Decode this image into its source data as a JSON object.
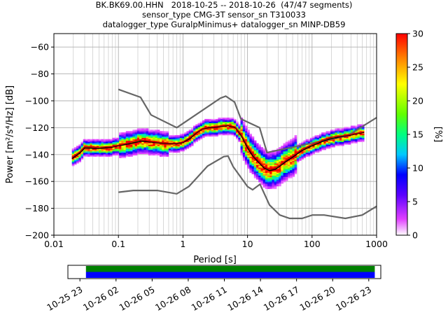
{
  "title": {
    "line1": "BK.BK69.00.HHN   2018-10-25 -- 2018-10-26  (47/47 segments)",
    "line2": "sensor_type CMG-3T sensor_sn T310033",
    "line3": "datalogger_type GuralpMinimus+ datalogger_sn MINP-DB59"
  },
  "chart_data": [
    {
      "type": "heatmap",
      "xlabel": "Period [s]",
      "ylabel": "Power [m²/s⁴/Hz] [dB]",
      "xscale": "log",
      "xlim": [
        0.01,
        1000
      ],
      "ylim": [
        -200,
        -50
      ],
      "xticks": [
        "0.01",
        "0.1",
        "1",
        "10",
        "100",
        "1000"
      ],
      "yticks": [
        "−60",
        "−80",
        "−100",
        "−120",
        "−140",
        "−160",
        "−180",
        "−200"
      ],
      "grid": true,
      "colorbar": {
        "label": "[%]",
        "range": [
          0,
          30
        ],
        "ticks": [
          "0",
          "5",
          "10",
          "15",
          "20",
          "25",
          "30"
        ]
      },
      "series": [
        {
          "name": "",
          "role": "noise model high",
          "color": "#666666",
          "x": [
            0.1,
            0.22,
            0.32,
            0.8,
            3.8,
            4.6,
            6.3,
            7.9,
            15.4,
            20.0,
            354.8,
            1000
          ],
          "y": [
            -91.5,
            -97.4,
            -110.5,
            -120.0,
            -98.0,
            -96.5,
            -101.0,
            -113.5,
            -120.0,
            -138.5,
            -126.0,
            -112.5
          ]
        },
        {
          "name": "",
          "role": "noise model low",
          "color": "#666666",
          "x": [
            0.1,
            0.17,
            0.4,
            0.8,
            1.24,
            2.4,
            4.3,
            5.0,
            6.0,
            10.0,
            12.0,
            15.6,
            21.9,
            31.6,
            45.0,
            70.0,
            101.0,
            154.0,
            328.0,
            600.0,
            1000
          ],
          "y": [
            -168.0,
            -166.7,
            -166.7,
            -169.2,
            -163.7,
            -148.6,
            -141.5,
            -141.1,
            -149.0,
            -163.8,
            -166.2,
            -162.1,
            -177.5,
            -185.0,
            -187.5,
            -187.5,
            -185.0,
            -185.0,
            -187.5,
            -185.0,
            -178.5
          ]
        },
        {
          "name": "",
          "role": "mean",
          "color": "#000000",
          "x": [
            0.019,
            0.025,
            0.03,
            0.05,
            0.08,
            0.1,
            0.15,
            0.22,
            0.3,
            0.45,
            0.6,
            0.8,
            1.0,
            1.3,
            1.6,
            2.0,
            2.5,
            3.0,
            4.0,
            5.0,
            6.5,
            8.0,
            10.0,
            12.0,
            15.0,
            18.0,
            22.0,
            27.0,
            33.0,
            40.0,
            50.0,
            70.0,
            100.0,
            150.0,
            200.0,
            300.0,
            400.0,
            500.0,
            640.0
          ],
          "y": [
            -143.0,
            -139.0,
            -135.0,
            -135.5,
            -134.5,
            -133.5,
            -132.0,
            -130.0,
            -130.5,
            -131.5,
            -132.0,
            -132.0,
            -131.0,
            -128.0,
            -124.0,
            -121.0,
            -120.0,
            -120.0,
            -119.0,
            -118.5,
            -120.0,
            -126.0,
            -135.0,
            -141.0,
            -146.0,
            -150.0,
            -152.0,
            -151.0,
            -148.0,
            -145.0,
            -142.0,
            -137.0,
            -133.5,
            -130.0,
            -128.0,
            -126.5,
            -125.5,
            -124.5,
            -123.5
          ]
        },
        {
          "name": "",
          "role": "mode",
          "color": "#cc0000",
          "x": [
            0.019,
            0.025,
            0.03,
            0.05,
            0.08,
            0.1,
            0.15,
            0.22,
            0.3,
            0.45,
            0.6,
            0.8,
            1.0,
            1.3,
            1.6,
            2.0,
            2.5,
            3.0,
            4.0,
            5.0,
            6.5,
            8.0,
            10.0,
            12.0,
            15.0,
            18.0,
            22.0,
            27.0,
            33.0,
            40.0,
            50.0,
            70.0,
            100.0,
            150.0,
            200.0,
            300.0,
            400.0,
            500.0,
            640.0
          ],
          "y": [
            -142.0,
            -138.0,
            -134.0,
            -134.5,
            -134.0,
            -133.0,
            -131.0,
            -129.0,
            -130.0,
            -131.0,
            -131.5,
            -131.5,
            -130.5,
            -127.0,
            -123.5,
            -120.5,
            -119.5,
            -119.5,
            -118.5,
            -118.0,
            -119.5,
            -125.0,
            -133.5,
            -139.5,
            -145.0,
            -149.0,
            -151.0,
            -150.0,
            -147.0,
            -144.0,
            -141.0,
            -136.0,
            -132.5,
            -129.0,
            -127.0,
            -126.0,
            -125.0,
            -124.0,
            -123.0
          ]
        }
      ]
    },
    {
      "type": "bar",
      "role": "data availability",
      "xticks": [
        "10-25 23",
        "10-26 02",
        "10-26 05",
        "10-26 08",
        "10-26 11",
        "10-26 14",
        "10-26 17",
        "10-26 20",
        "10-26 23"
      ],
      "xlim": [
        "2018-10-25 22:00",
        "2018-10-27 00:00"
      ],
      "bars": [
        {
          "start": "2018-10-25 23:30",
          "end": "2018-10-26 23:30",
          "fraction": 0.5,
          "color": "#008000"
        },
        {
          "start": "2018-10-25 23:30",
          "end": "2018-10-26 23:30",
          "fraction": 0.5,
          "color": "#0000ff"
        }
      ]
    }
  ]
}
